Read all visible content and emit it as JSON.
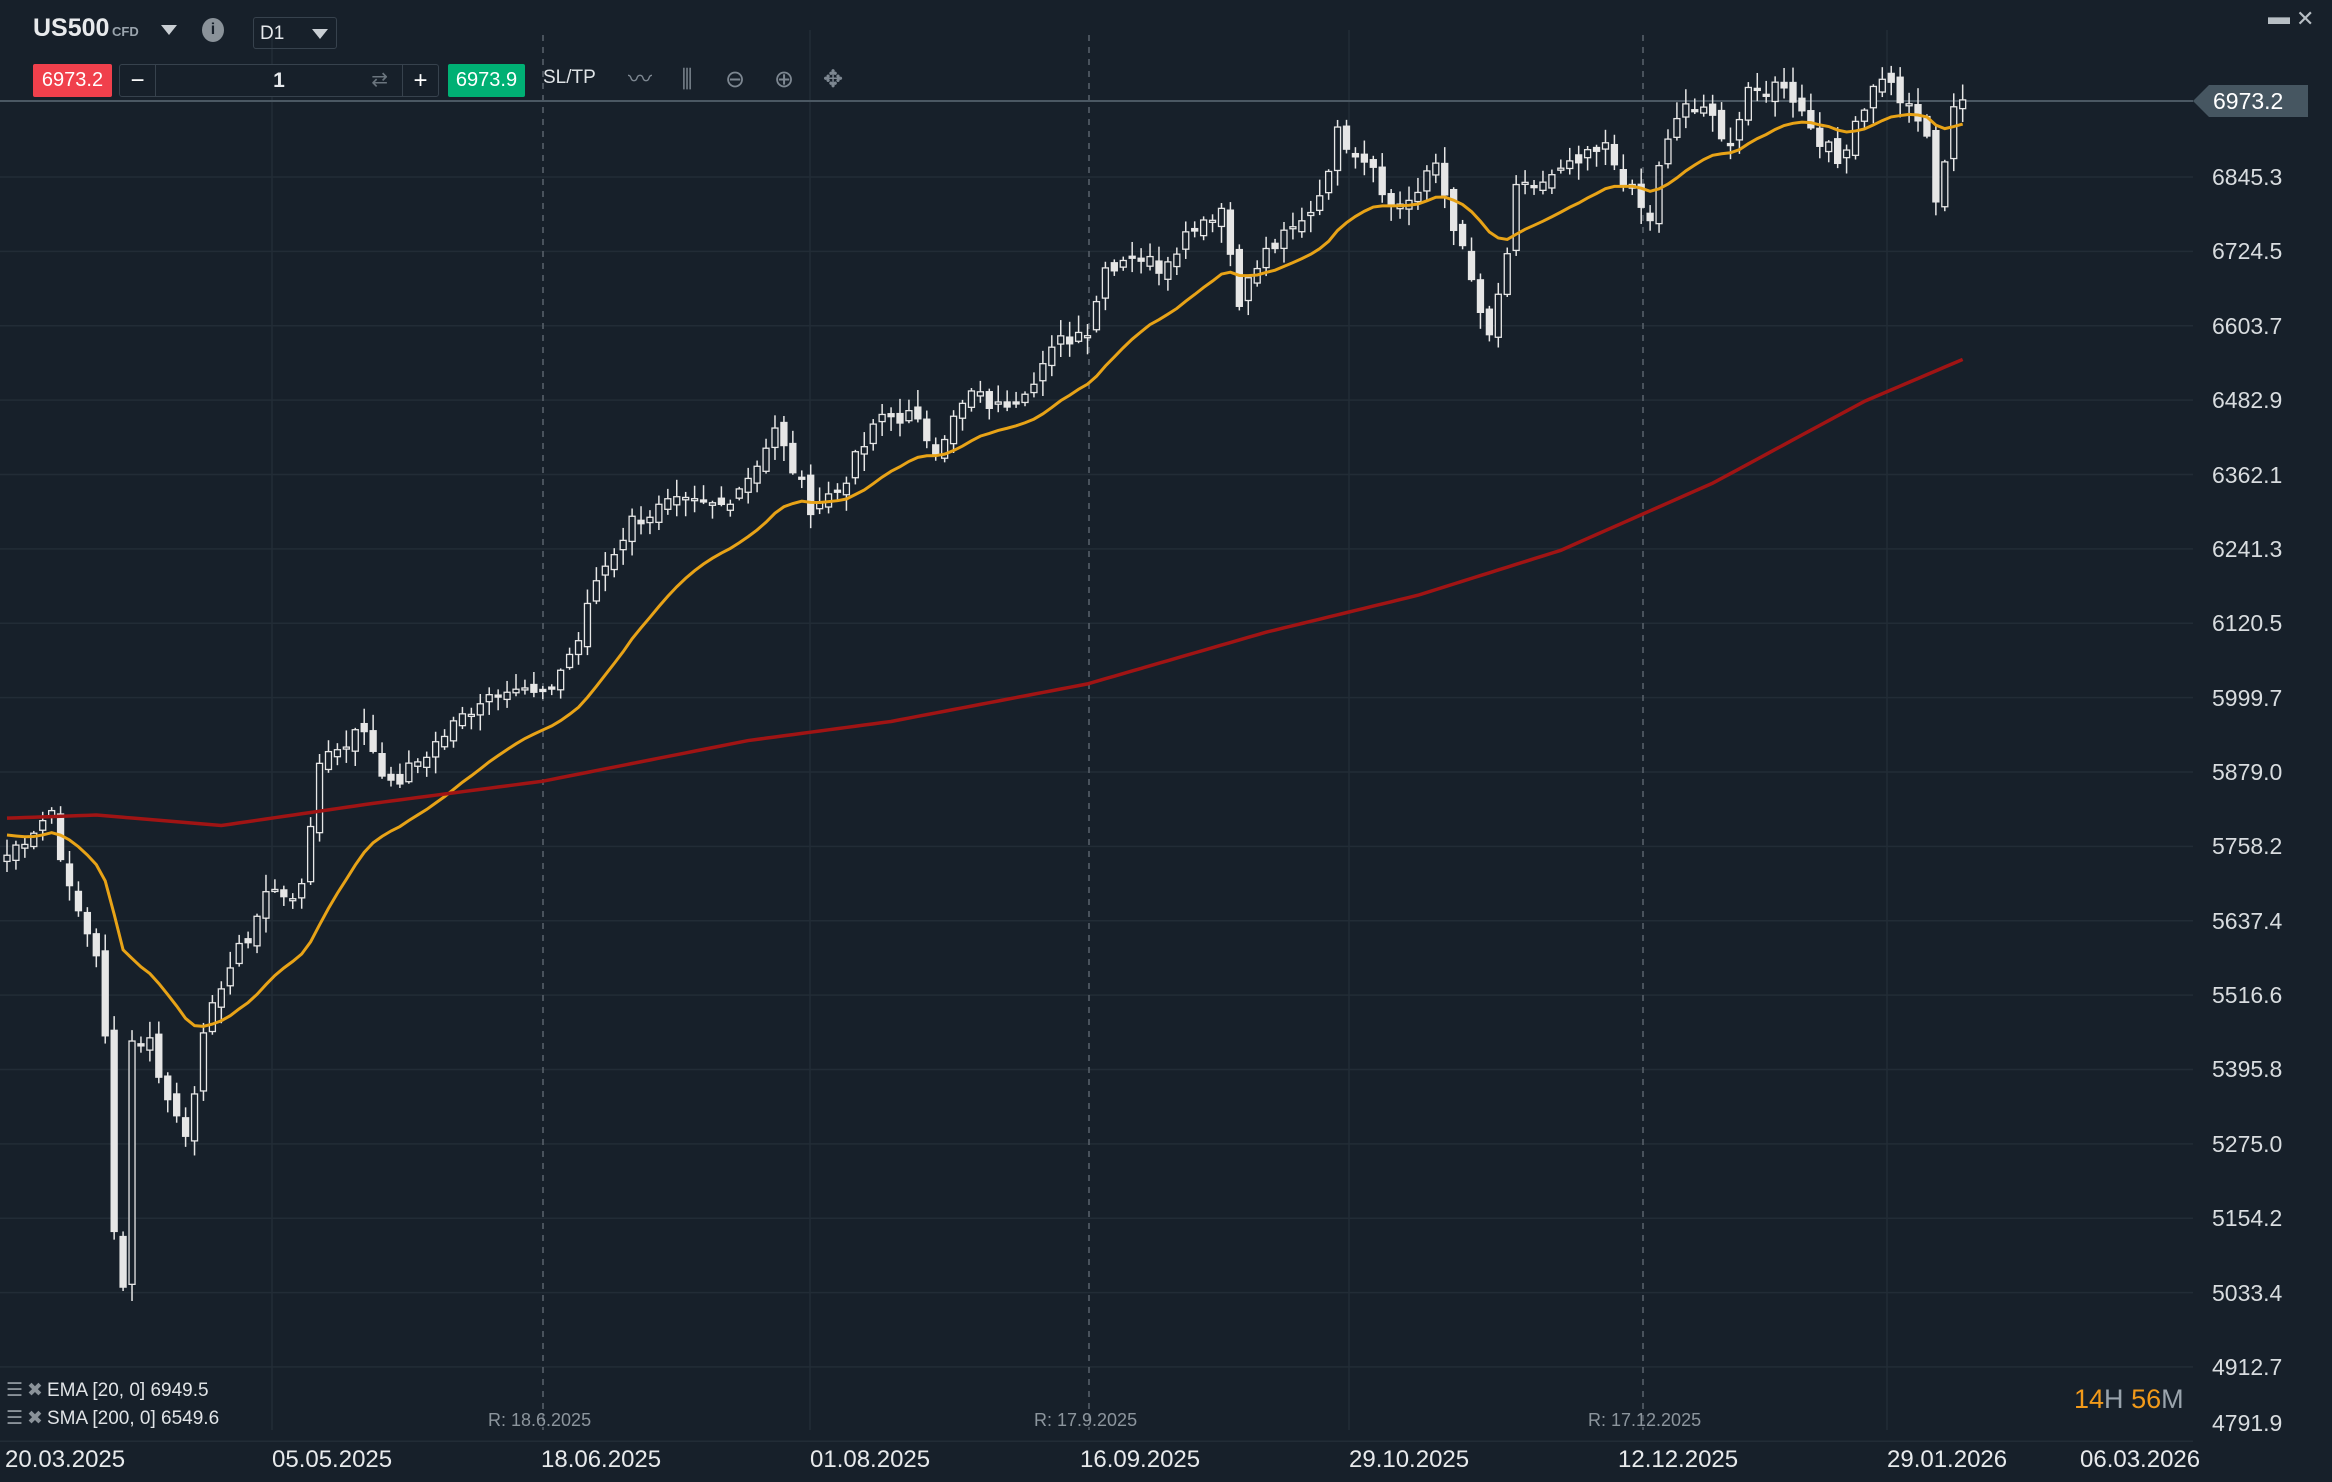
{
  "header": {
    "symbol": "US500",
    "symbol_type": "CFD",
    "timeframe": "D1"
  },
  "trade": {
    "sell_price": "6973.2",
    "buy_price": "6973.9",
    "quantity": "1",
    "minus": "−",
    "plus": "+",
    "sltp": "SL/TP"
  },
  "price_tag": "6973.2",
  "countdown": {
    "hours": "14",
    "h": "H",
    "minutes": "56",
    "m": "M"
  },
  "indicators": [
    {
      "label": "EMA [20, 0] 6949.5",
      "color": "#e8a317"
    },
    {
      "label": "SMA [200, 0] 6549.6",
      "color": "#a01414"
    }
  ],
  "colors": {
    "bg": "#17202a",
    "sell": "#f0404c",
    "buy": "#00b074",
    "ema": "#e8a317",
    "sma": "#a01414",
    "candle": "#e6e6e6"
  },
  "chart_data": {
    "type": "candlestick",
    "symbol": "US500",
    "y_ticks": [
      6973.2,
      6845.3,
      6724.5,
      6603.7,
      6482.9,
      6362.1,
      6241.3,
      6120.5,
      5999.7,
      5879.0,
      5758.2,
      5637.4,
      5516.6,
      5395.8,
      5275.0,
      5154.2,
      5033.4,
      4912.7,
      4791.9
    ],
    "y_tick_labels": [
      "6973.2",
      "6845.3",
      "6724.5",
      "6603.7",
      "6482.9",
      "6362.1",
      "6241.3",
      "6120.5",
      "5999.7",
      "5879.0",
      "5758.2",
      "5637.4",
      "5516.6",
      "5395.8",
      "5275.0",
      "5154.2",
      "5033.4",
      "4912.7",
      "4791.9"
    ],
    "x_tick_labels": [
      "20.03.2025",
      "05.05.2025",
      "18.06.2025",
      "01.08.2025",
      "16.09.2025",
      "29.10.2025",
      "12.12.2025",
      "29.01.2026",
      "06.03.2026"
    ],
    "rollover_labels": [
      "R: 18.6.2025",
      "R: 17.9.2025",
      "R: 17.12.2025"
    ],
    "close_anchors": [
      [
        0,
        5744
      ],
      [
        5,
        5816
      ],
      [
        7,
        5683
      ],
      [
        10,
        5587
      ],
      [
        11,
        5442
      ],
      [
        12,
        5128
      ],
      [
        13,
        5055
      ],
      [
        14,
        5442
      ],
      [
        16,
        5442
      ],
      [
        18,
        5345
      ],
      [
        20,
        5297
      ],
      [
        22,
        5442
      ],
      [
        24,
        5538
      ],
      [
        27,
        5611
      ],
      [
        29,
        5683
      ],
      [
        33,
        5683
      ],
      [
        35,
        5901
      ],
      [
        40,
        5949
      ],
      [
        43,
        5853
      ],
      [
        48,
        5925
      ],
      [
        53,
        5998
      ],
      [
        56,
        6022
      ],
      [
        60,
        5998
      ],
      [
        64,
        6094
      ],
      [
        66,
        6191
      ],
      [
        70,
        6287
      ],
      [
        74,
        6312
      ],
      [
        80,
        6312
      ],
      [
        83,
        6360
      ],
      [
        86,
        6432
      ],
      [
        90,
        6312
      ],
      [
        93,
        6336
      ],
      [
        98,
        6457
      ],
      [
        101,
        6457
      ],
      [
        104,
        6408
      ],
      [
        108,
        6493
      ],
      [
        111,
        6470
      ],
      [
        114,
        6505
      ],
      [
        118,
        6577
      ],
      [
        121,
        6601
      ],
      [
        123,
        6698
      ],
      [
        126,
        6722
      ],
      [
        129,
        6700
      ],
      [
        133,
        6770
      ],
      [
        136,
        6795
      ],
      [
        138,
        6650
      ],
      [
        141,
        6722
      ],
      [
        145,
        6770
      ],
      [
        147,
        6819
      ],
      [
        149,
        6915
      ],
      [
        153,
        6867
      ],
      [
        155,
        6795
      ],
      [
        158,
        6819
      ],
      [
        160,
        6867
      ],
      [
        162,
        6770
      ],
      [
        164,
        6674
      ],
      [
        166,
        6577
      ],
      [
        168,
        6722
      ],
      [
        169,
        6819
      ],
      [
        173,
        6843
      ],
      [
        176,
        6867
      ],
      [
        179,
        6891
      ],
      [
        182,
        6819
      ],
      [
        184,
        6770
      ],
      [
        185,
        6867
      ],
      [
        188,
        6964
      ],
      [
        191,
        6939
      ],
      [
        193,
        6903
      ],
      [
        195,
        6976
      ],
      [
        199,
        7000
      ],
      [
        201,
        6952
      ],
      [
        205,
        6867
      ],
      [
        207,
        6939
      ],
      [
        210,
        7012
      ],
      [
        213,
        6952
      ],
      [
        215,
        6915
      ],
      [
        216,
        6795
      ],
      [
        218,
        6964
      ],
      [
        219,
        6973
      ]
    ],
    "sma200_anchors": [
      [
        0,
        5804
      ],
      [
        10,
        5809
      ],
      [
        24,
        5792
      ],
      [
        41,
        5828
      ],
      [
        60,
        5864
      ],
      [
        83,
        5930
      ],
      [
        99,
        5961
      ],
      [
        121,
        6022
      ],
      [
        141,
        6106
      ],
      [
        158,
        6166
      ],
      [
        174,
        6239
      ],
      [
        191,
        6348
      ],
      [
        208,
        6481
      ],
      [
        219,
        6549
      ]
    ],
    "ema_period": 20,
    "x_range_index": [
      0,
      219
    ],
    "ylim": [
      4791.9,
      6973.2
    ]
  }
}
